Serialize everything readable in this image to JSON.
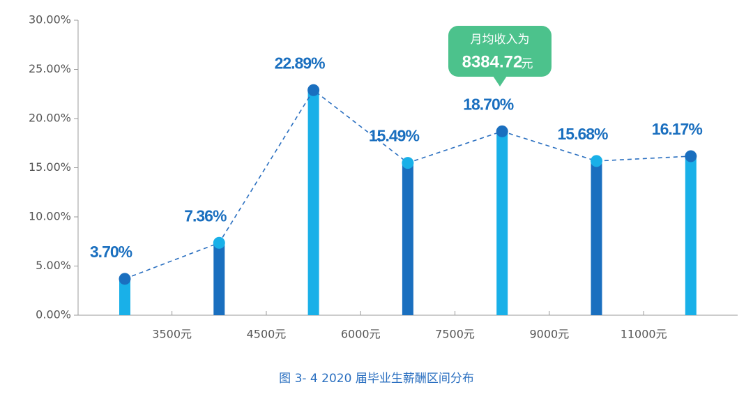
{
  "chart_data": {
    "type": "bar",
    "caption": "图 3- 4 2020 届毕业生薪酬区间分布",
    "xtick_labels": [
      "3500元",
      "4500元",
      "6000元",
      "7500元",
      "9000元",
      "11000元"
    ],
    "values": [
      3.7,
      7.36,
      22.89,
      15.49,
      18.7,
      15.68,
      16.17
    ],
    "value_labels": [
      "3.70%",
      "7.36%",
      "22.89%",
      "15.49%",
      "18.70%",
      "15.68%",
      "16.17%"
    ],
    "colors": [
      "#19b0e8",
      "#1a6fbf",
      "#19b0e8",
      "#1a6fbf",
      "#19b0e8",
      "#1a6fbf",
      "#19b0e8"
    ],
    "dot_colors": [
      "#1a6fbf",
      "#19b0e8",
      "#1a6fbf",
      "#19b0e8",
      "#1a6fbf",
      "#19b0e8",
      "#1a6fbf"
    ],
    "line_color": "#2a6fc0",
    "ylim": [
      0,
      30
    ],
    "yticks": [
      {
        "value": 0,
        "label": "0.00%"
      },
      {
        "value": 5,
        "label": "5.00%"
      },
      {
        "value": 10,
        "label": "10.00%"
      },
      {
        "value": 15,
        "label": "15.00%"
      },
      {
        "value": 20,
        "label": "20.00%"
      },
      {
        "value": 25,
        "label": "25.00%"
      },
      {
        "value": 30,
        "label": "30.00%"
      }
    ],
    "annotation": {
      "title": "月均收入为",
      "value": "8384.72",
      "unit": "元"
    }
  }
}
